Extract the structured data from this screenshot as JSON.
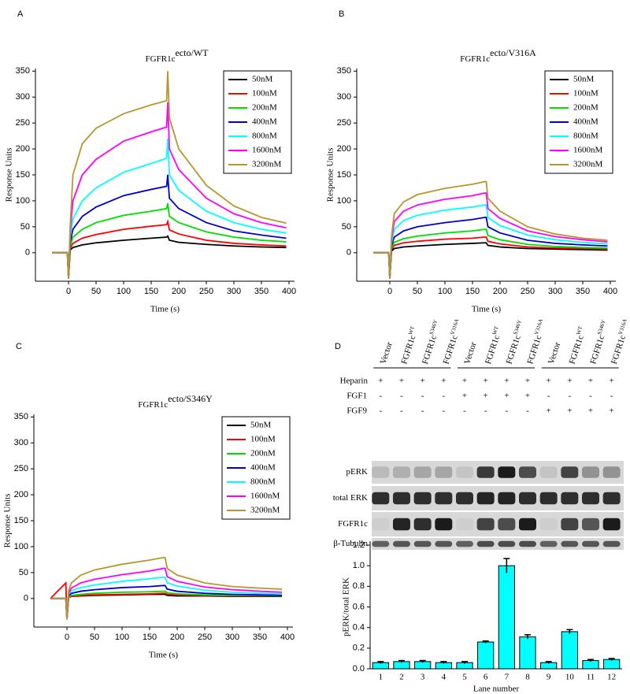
{
  "chart_data": [
    {
      "type": "line",
      "panel": "A",
      "title": "FGFR1c",
      "title_superscript": "ecto/WT",
      "xlabel": "Time (s)",
      "ylabel": "Response Units",
      "xlim": [
        -60,
        410
      ],
      "ylim": [
        -55,
        355
      ],
      "xticks": [
        0,
        50,
        100,
        150,
        200,
        250,
        300,
        350,
        400
      ],
      "yticks": [
        0,
        50,
        100,
        150,
        200,
        250,
        300,
        350
      ],
      "legend": "upper right",
      "x": [
        -30,
        -2,
        0,
        3,
        8,
        25,
        50,
        100,
        150,
        178,
        180,
        183,
        200,
        250,
        300,
        350,
        395
      ],
      "series": [
        {
          "name": "50nM",
          "color": "#000000",
          "values": [
            0,
            0,
            -50,
            5,
            10,
            15,
            19,
            24,
            28,
            30,
            32,
            24,
            20,
            16,
            13,
            11,
            10
          ]
        },
        {
          "name": "100nM",
          "color": "#ff0000",
          "values": [
            0,
            0,
            -50,
            8,
            18,
            28,
            35,
            45,
            51,
            54,
            60,
            44,
            36,
            24,
            18,
            15,
            13
          ]
        },
        {
          "name": "200nM",
          "color": "#00dd00",
          "values": [
            0,
            0,
            -50,
            12,
            30,
            45,
            58,
            72,
            80,
            85,
            95,
            70,
            58,
            40,
            30,
            24,
            21
          ]
        },
        {
          "name": "400nM",
          "color": "#0000cc",
          "values": [
            0,
            0,
            -50,
            20,
            45,
            70,
            88,
            110,
            122,
            128,
            150,
            105,
            85,
            58,
            42,
            34,
            28
          ]
        },
        {
          "name": "800nM",
          "color": "#00ffff",
          "values": [
            0,
            0,
            -50,
            30,
            65,
            100,
            125,
            155,
            172,
            182,
            220,
            150,
            120,
            80,
            58,
            45,
            38
          ]
        },
        {
          "name": "1600nM",
          "color": "#ff00ff",
          "values": [
            0,
            0,
            -50,
            40,
            100,
            150,
            180,
            215,
            233,
            242,
            290,
            200,
            160,
            105,
            75,
            58,
            48
          ]
        },
        {
          "name": "3200nM",
          "color": "#b8962e",
          "values": [
            0,
            0,
            -50,
            50,
            150,
            210,
            240,
            268,
            285,
            293,
            350,
            260,
            200,
            130,
            90,
            68,
            57
          ]
        }
      ]
    },
    {
      "type": "line",
      "panel": "B",
      "title": "FGFR1c",
      "title_superscript": "ecto/V316A",
      "xlabel": "Time (s)",
      "ylabel": "Response Units",
      "xlim": [
        -60,
        410
      ],
      "ylim": [
        -55,
        355
      ],
      "xticks": [
        0,
        50,
        100,
        150,
        200,
        250,
        300,
        350,
        400
      ],
      "yticks": [
        0,
        50,
        100,
        150,
        200,
        250,
        300,
        350
      ],
      "legend": "upper right",
      "x": [
        -30,
        -2,
        0,
        3,
        8,
        25,
        50,
        100,
        150,
        172,
        175,
        178,
        200,
        250,
        300,
        350,
        395
      ],
      "series": [
        {
          "name": "50nM",
          "color": "#000000",
          "values": [
            0,
            0,
            -50,
            3,
            8,
            11,
            13,
            16,
            18,
            19,
            19,
            14,
            11,
            8,
            7,
            6,
            5
          ]
        },
        {
          "name": "100nM",
          "color": "#ff0000",
          "values": [
            0,
            0,
            -50,
            6,
            14,
            19,
            22,
            26,
            28,
            30,
            30,
            22,
            17,
            11,
            9,
            8,
            7
          ]
        },
        {
          "name": "200nM",
          "color": "#00dd00",
          "values": [
            0,
            0,
            -50,
            9,
            20,
            27,
            32,
            38,
            42,
            45,
            45,
            33,
            25,
            16,
            12,
            10,
            9
          ]
        },
        {
          "name": "400nM",
          "color": "#0000cc",
          "values": [
            0,
            0,
            -50,
            13,
            30,
            42,
            50,
            58,
            64,
            68,
            68,
            50,
            38,
            24,
            18,
            15,
            13
          ]
        },
        {
          "name": "800nM",
          "color": "#00ffff",
          "values": [
            0,
            0,
            -50,
            18,
            45,
            62,
            72,
            82,
            88,
            92,
            92,
            68,
            52,
            34,
            25,
            20,
            17
          ]
        },
        {
          "name": "1600nM",
          "color": "#ff00ff",
          "values": [
            0,
            0,
            -50,
            25,
            60,
            80,
            92,
            103,
            110,
            115,
            115,
            85,
            66,
            42,
            31,
            25,
            21
          ]
        },
        {
          "name": "3200nM",
          "color": "#b8962e",
          "values": [
            0,
            0,
            -50,
            30,
            75,
            98,
            112,
            124,
            132,
            137,
            137,
            105,
            80,
            50,
            36,
            28,
            24
          ]
        }
      ]
    },
    {
      "type": "line",
      "panel": "C",
      "title": "FGFR1c",
      "title_superscript": "ecto/S346Y",
      "xlabel": "Time (s)",
      "ylabel": "Response Units",
      "xlim": [
        -60,
        410
      ],
      "ylim": [
        -55,
        355
      ],
      "xticks": [
        0,
        50,
        100,
        150,
        200,
        250,
        300,
        350,
        400
      ],
      "yticks": [
        0,
        50,
        100,
        150,
        200,
        250,
        300,
        350
      ],
      "legend": "upper right",
      "x": [
        -30,
        -2,
        0,
        3,
        8,
        25,
        50,
        100,
        150,
        175,
        178,
        182,
        200,
        250,
        300,
        350,
        390
      ],
      "series": [
        {
          "name": "50nM",
          "color": "#000000",
          "values": [
            0,
            0,
            -40,
            2,
            4,
            5,
            6,
            7,
            8,
            8,
            8,
            6,
            5,
            5,
            4,
            4,
            4
          ]
        },
        {
          "name": "100nM",
          "color": "#ff0000",
          "values": [
            0,
            30,
            -40,
            2,
            4,
            6,
            7,
            8,
            9,
            10,
            10,
            8,
            7,
            6,
            5,
            5,
            5
          ]
        },
        {
          "name": "200nM",
          "color": "#00dd00",
          "values": [
            0,
            0,
            -40,
            3,
            6,
            8,
            10,
            12,
            13,
            14,
            14,
            11,
            9,
            7,
            6,
            6,
            5
          ]
        },
        {
          "name": "400nM",
          "color": "#0000cc",
          "values": [
            0,
            0,
            -40,
            5,
            10,
            14,
            17,
            21,
            23,
            25,
            25,
            18,
            14,
            10,
            8,
            7,
            6
          ]
        },
        {
          "name": "800nM",
          "color": "#00ffff",
          "values": [
            0,
            0,
            -40,
            8,
            15,
            21,
            26,
            33,
            38,
            41,
            41,
            30,
            24,
            16,
            12,
            10,
            9
          ]
        },
        {
          "name": "1600nM",
          "color": "#ff00ff",
          "values": [
            0,
            0,
            -40,
            10,
            20,
            30,
            37,
            46,
            53,
            58,
            58,
            42,
            33,
            22,
            17,
            14,
            12
          ]
        },
        {
          "name": "3200nM",
          "color": "#b8962e",
          "values": [
            0,
            0,
            -40,
            15,
            30,
            45,
            55,
            66,
            74,
            79,
            79,
            58,
            45,
            30,
            23,
            20,
            18
          ]
        }
      ]
    },
    {
      "type": "bar",
      "xlabel": "Lane number",
      "ylabel": "pERK/total ERK",
      "color": "#00ffff",
      "categories": [
        "1",
        "2",
        "3",
        "4",
        "5",
        "6",
        "7",
        "8",
        "9",
        "10",
        "11",
        "12"
      ],
      "values": [
        0.06,
        0.07,
        0.07,
        0.06,
        0.06,
        0.26,
        1.0,
        0.31,
        0.06,
        0.36,
        0.08,
        0.09
      ],
      "errors": [
        0.01,
        0.01,
        0.01,
        0.01,
        0.01,
        0.01,
        0.07,
        0.02,
        0.01,
        0.02,
        0.01,
        0.01
      ],
      "ylim": [
        0,
        1.2
      ],
      "yticks": [
        {
          "value": 0,
          "label": "0.0"
        },
        0.2,
        0.4,
        0.6,
        0.8,
        {
          "value": 1,
          "label": "1.0"
        },
        1.2
      ]
    }
  ],
  "blot": {
    "panel": "D",
    "lanes": [
      {
        "name": "Vector"
      },
      {
        "name": "FGFR1c",
        "superscript": "WT"
      },
      {
        "name": "FGFR1c",
        "superscript": "S346Y"
      },
      {
        "name": "FGFR1c",
        "superscript": "V316A"
      },
      {
        "name": "Vector"
      },
      {
        "name": "FGFR1c",
        "superscript": "WT"
      },
      {
        "name": "FGFR1c",
        "superscript": "S346Y"
      },
      {
        "name": "FGFR1c",
        "superscript": "V316A"
      },
      {
        "name": "Vector"
      },
      {
        "name": "FGFR1c",
        "superscript": "WT"
      },
      {
        "name": "FGFR1c",
        "superscript": "S346Y"
      },
      {
        "name": "FGFR1c",
        "superscript": "V316A"
      }
    ],
    "treatments": [
      {
        "name": "Heparin",
        "signs": [
          "+",
          "+",
          "+",
          "+",
          "+",
          "+",
          "+",
          "+",
          "+",
          "+",
          "+",
          "+"
        ]
      },
      {
        "name": "FGF1",
        "signs": [
          "-",
          "-",
          "-",
          "-",
          "+",
          "+",
          "+",
          "+",
          "-",
          "-",
          "-",
          "-"
        ]
      },
      {
        "name": "FGF9",
        "signs": [
          "-",
          "-",
          "-",
          "-",
          "-",
          "-",
          "-",
          "-",
          "+",
          "+",
          "+",
          "+"
        ]
      }
    ],
    "bands": [
      "pERK",
      "total ERK",
      "FGFR1c",
      "β-Tubulin"
    ]
  }
}
